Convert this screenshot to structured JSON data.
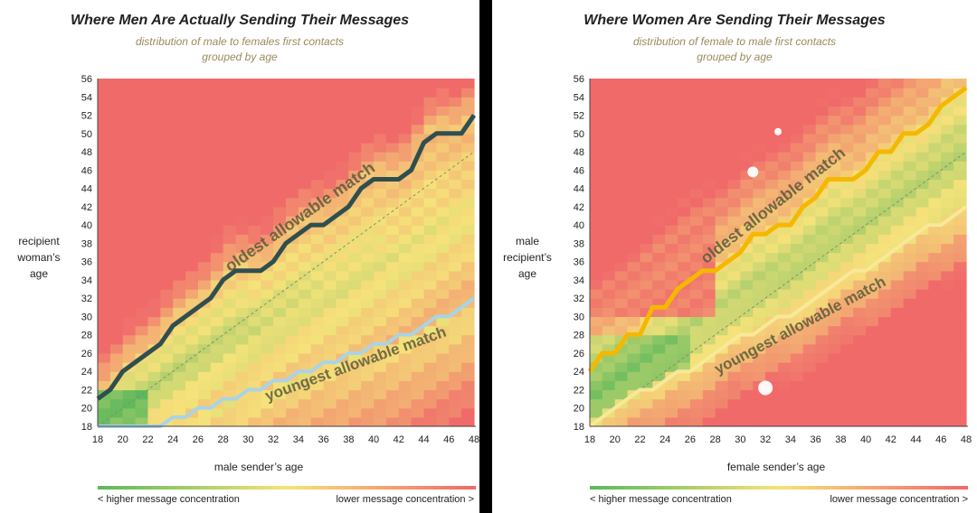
{
  "charts": [
    {
      "title": "Where Men Are Actually Sending Their Messages",
      "subtitle_line1": "distribution of male to females first contacts",
      "subtitle_line2": "grouped by age",
      "xlabel": "male sender’s age",
      "ylabel_lines": [
        "recipient",
        "woman’s",
        "age"
      ],
      "legend_low": "< higher message concentration",
      "legend_high": "lower message concentration >",
      "annotation_upper": "oldest allowable match",
      "annotation_lower": "youngest allowable match"
    },
    {
      "title": "Where Women Are Sending Their Messages",
      "subtitle_line1": "distribution of female to male first contacts",
      "subtitle_line2": "grouped by age",
      "xlabel": "female sender’s age",
      "ylabel_lines": [
        "male",
        "recipient’s",
        "age"
      ],
      "legend_low": "< higher message concentration",
      "legend_high": "lower message concentration >",
      "annotation_upper": "oldest allowable match",
      "annotation_lower": "youngest allowable match"
    }
  ],
  "colors": {
    "high": "#5cb85c",
    "mid": "#f5e27a",
    "low": "#f06a6a",
    "men_oldest_line": "#2f4f4f",
    "men_youngest_line": "#a8d4e8",
    "women_oldest_line": "#f5b800",
    "women_youngest_line": "#f8e89a"
  },
  "chart_data": [
    {
      "type": "heatmap",
      "title": "Where Men Are Actually Sending Their Messages",
      "xlabel": "male sender’s age",
      "ylabel": "recipient woman’s age",
      "xlim": [
        18,
        48
      ],
      "ylim": [
        18,
        56
      ],
      "x_ticks": [
        18,
        20,
        22,
        24,
        26,
        28,
        30,
        32,
        34,
        36,
        38,
        40,
        42,
        44,
        46,
        48
      ],
      "y_ticks": [
        18,
        20,
        22,
        24,
        26,
        28,
        30,
        32,
        34,
        36,
        38,
        40,
        42,
        44,
        46,
        48,
        50,
        52,
        54,
        56
      ],
      "grid": false,
      "legend": "bottom",
      "series": [
        {
          "name": "oldest allowable match",
          "x": [
            18,
            19,
            20,
            21,
            22,
            23,
            24,
            25,
            26,
            27,
            28,
            29,
            30,
            31,
            32,
            33,
            34,
            35,
            36,
            37,
            38,
            39,
            40,
            41,
            42,
            43,
            44,
            45,
            46,
            47,
            48
          ],
          "y": [
            21,
            22,
            24,
            25,
            26,
            27,
            29,
            30,
            31,
            32,
            34,
            35,
            35,
            35,
            36,
            38,
            39,
            40,
            40,
            41,
            42,
            44,
            45,
            45,
            45,
            46,
            49,
            50,
            50,
            50,
            52
          ]
        },
        {
          "name": "youngest allowable match",
          "x": [
            18,
            19,
            20,
            21,
            22,
            23,
            24,
            25,
            26,
            27,
            28,
            29,
            30,
            31,
            32,
            33,
            34,
            35,
            36,
            37,
            38,
            39,
            40,
            41,
            42,
            43,
            44,
            45,
            46,
            47,
            48
          ],
          "y": [
            18,
            18,
            18,
            18,
            18,
            18,
            19,
            19,
            20,
            20,
            21,
            21,
            22,
            22,
            23,
            23,
            24,
            24,
            25,
            25,
            26,
            26,
            27,
            27,
            28,
            28,
            29,
            30,
            30,
            31,
            32
          ]
        }
      ]
    },
    {
      "type": "heatmap",
      "title": "Where Women Are Sending Their Messages",
      "xlabel": "female sender’s age",
      "ylabel": "male recipient’s age",
      "xlim": [
        18,
        48
      ],
      "ylim": [
        18,
        56
      ],
      "x_ticks": [
        18,
        20,
        22,
        24,
        26,
        28,
        30,
        32,
        34,
        36,
        38,
        40,
        42,
        44,
        46,
        48
      ],
      "y_ticks": [
        18,
        20,
        22,
        24,
        26,
        28,
        30,
        32,
        34,
        36,
        38,
        40,
        42,
        44,
        46,
        48,
        50,
        52,
        54,
        56
      ],
      "grid": false,
      "legend": "bottom",
      "series": [
        {
          "name": "oldest allowable match",
          "x": [
            18,
            19,
            20,
            21,
            22,
            23,
            24,
            25,
            26,
            27,
            28,
            29,
            30,
            31,
            32,
            33,
            34,
            35,
            36,
            37,
            38,
            39,
            40,
            41,
            42,
            43,
            44,
            45,
            46,
            47,
            48
          ],
          "y": [
            24,
            26,
            26,
            28,
            28,
            31,
            31,
            33,
            34,
            35,
            35,
            36,
            37,
            39,
            39,
            40,
            40,
            42,
            43,
            45,
            45,
            45,
            46,
            48,
            48,
            50,
            50,
            51,
            53,
            54,
            55
          ]
        },
        {
          "name": "youngest allowable match",
          "x": [
            18,
            19,
            20,
            21,
            22,
            23,
            24,
            25,
            26,
            27,
            28,
            29,
            30,
            31,
            32,
            33,
            34,
            35,
            36,
            37,
            38,
            39,
            40,
            41,
            42,
            43,
            44,
            45,
            46,
            47,
            48
          ],
          "y": [
            18,
            19,
            20,
            21,
            22,
            22,
            23,
            24,
            24,
            25,
            26,
            27,
            28,
            28,
            29,
            30,
            30,
            31,
            32,
            33,
            34,
            35,
            35,
            36,
            37,
            38,
            39,
            40,
            40,
            41,
            42
          ]
        }
      ]
    }
  ]
}
